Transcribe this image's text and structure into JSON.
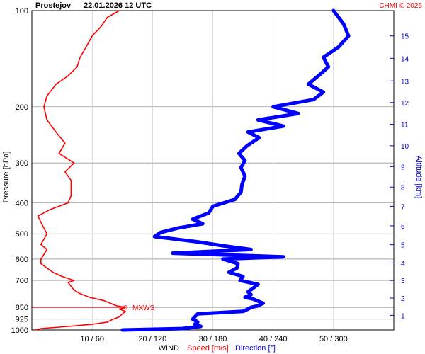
{
  "header": {
    "station": "Prostejov",
    "datetime": "22.01.2026 12 UTC",
    "credit": "CHMI © 2026"
  },
  "colors": {
    "speed": "#ff0000",
    "direction": "#0000ff",
    "altitude_axis": "#0000cc",
    "grid": "#999999"
  },
  "chart_data": {
    "type": "line",
    "pressure_axis": {
      "label": "Pressure [hPa]",
      "scale": "log",
      "range": [
        1000,
        100
      ],
      "ticks": [
        100,
        200,
        300,
        400,
        500,
        600,
        700,
        850,
        925,
        1000
      ]
    },
    "altitude_axis": {
      "label": "Altitude [km]",
      "ticks": [
        1,
        2,
        3,
        4,
        5,
        6,
        7,
        8,
        9,
        10,
        11,
        12,
        13,
        14,
        15
      ],
      "tick_pressures": [
        900,
        795,
        700,
        617,
        541,
        472,
        410,
        357,
        308,
        265,
        227,
        194,
        166,
        141,
        120
      ]
    },
    "x_axis": {
      "title": "WIND",
      "speed_label": "Speed [m/s]",
      "direction_label": "Direction [°]",
      "ticks": [
        "10 / 60",
        "20 / 120",
        "30 / 180",
        "40 / 240",
        "50 / 300"
      ],
      "speed_range": [
        0,
        60
      ],
      "direction_range": [
        0,
        360
      ]
    },
    "annotation": {
      "text": "MXWS",
      "pressure": 850,
      "speed": 15.5
    },
    "series": [
      {
        "name": "Speed [m/s]",
        "p": [
          1000,
          990,
          975,
          960,
          945,
          925,
          910,
          890,
          875,
          860,
          850,
          840,
          825,
          810,
          790,
          770,
          750,
          730,
          710,
          700,
          680,
          660,
          640,
          620,
          600,
          580,
          560,
          540,
          520,
          500,
          480,
          460,
          440,
          420,
          400,
          380,
          360,
          340,
          320,
          300,
          280,
          260,
          240,
          220,
          200,
          185,
          170,
          160,
          150,
          140,
          130,
          120,
          112,
          105,
          100
        ],
        "v": [
          0.5,
          1.5,
          6,
          10,
          12.5,
          13.5,
          14.5,
          15,
          15.5,
          14.5,
          15.5,
          14,
          13,
          12,
          9.5,
          8,
          7,
          6.5,
          6,
          7,
          5,
          3.5,
          2.5,
          1.5,
          1.5,
          2,
          2.5,
          1.5,
          2,
          2.5,
          2,
          1.5,
          1,
          3,
          6,
          6.5,
          6.5,
          6.5,
          5.5,
          7,
          4.5,
          5.5,
          4,
          2.5,
          2,
          2.5,
          4,
          6,
          7.5,
          8,
          9,
          10,
          11.5,
          12.5,
          14.5
        ]
      },
      {
        "name": "Direction [°]",
        "p": [
          1000,
          990,
          975,
          960,
          945,
          925,
          910,
          890,
          875,
          860,
          850,
          840,
          825,
          800,
          790,
          775,
          760,
          740,
          720,
          700,
          680,
          660,
          640,
          620,
          600,
          590,
          575,
          560,
          545,
          530,
          510,
          495,
          480,
          465,
          450,
          430,
          410,
          390,
          370,
          350,
          330,
          310,
          295,
          280,
          265,
          250,
          240,
          230,
          220,
          210,
          200,
          190,
          180,
          170,
          160,
          150,
          140,
          130,
          120,
          110,
          100
        ],
        "v": [
          90,
          150,
          168,
          162,
          165,
          160,
          162,
          165,
          210,
          215,
          218,
          225,
          230,
          220,
          212,
          218,
          215,
          220,
          225,
          207,
          210,
          196,
          204,
          205,
          190,
          250,
          140,
          218,
          190,
          165,
          122,
          128,
          145,
          170,
          160,
          176,
          180,
          202,
          208,
          209,
          212,
          208,
          212,
          206,
          214,
          226,
          215,
          250,
          225,
          265,
          240,
          280,
          290,
          275,
          285,
          295,
          290,
          305,
          315,
          310,
          300
        ]
      }
    ]
  }
}
